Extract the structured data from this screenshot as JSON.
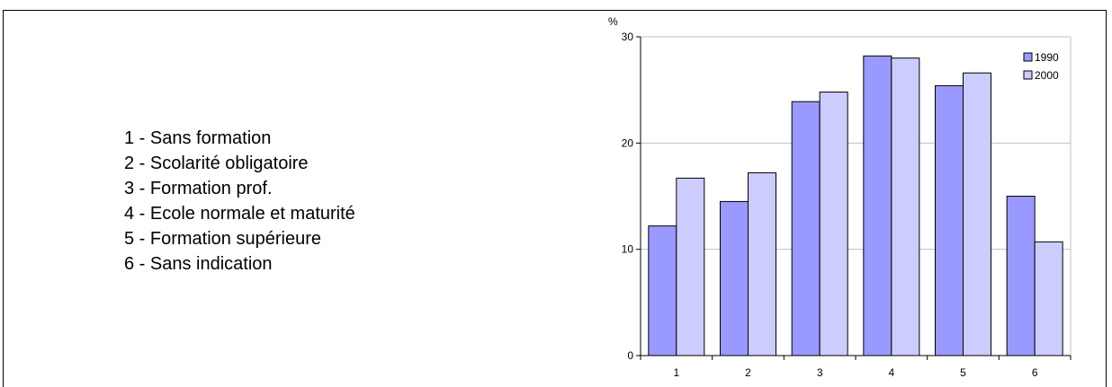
{
  "category_list": [
    "1 - Sans formation",
    "2 - Scolarité obligatoire",
    "3 - Formation prof.",
    "4 - Ecole normale et maturité",
    "5 - Formation supérieure",
    "6 - Sans indication"
  ],
  "colors": {
    "series_1990": "#9999ff",
    "series_2000": "#ccccff",
    "grid": "#c0c0c0"
  },
  "chart_data": {
    "type": "bar",
    "categories": [
      "1",
      "2",
      "3",
      "4",
      "5",
      "6"
    ],
    "series": [
      {
        "name": "1990",
        "values": [
          12.2,
          14.5,
          23.9,
          28.2,
          25.4,
          15.0
        ]
      },
      {
        "name": "2000",
        "values": [
          16.7,
          17.2,
          24.8,
          28.0,
          26.6,
          10.7
        ]
      }
    ],
    "ylabel": "%",
    "ylim": [
      0,
      30
    ],
    "yticks": [
      0,
      10,
      20,
      30
    ],
    "grid": true,
    "legend": "top-right"
  }
}
